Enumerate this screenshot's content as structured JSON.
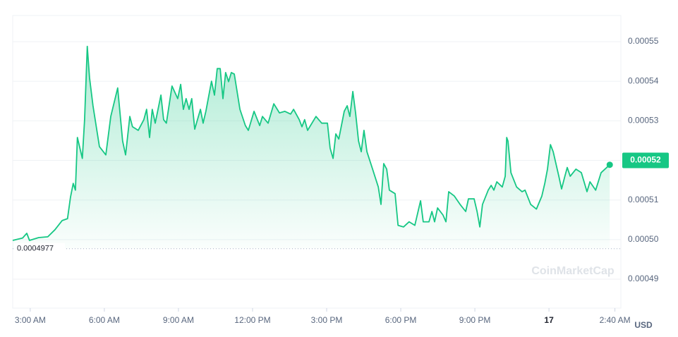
{
  "chart_data": {
    "type": "line",
    "x": [
      -0.71,
      -0.31,
      -0.14,
      -0.03,
      0.34,
      0.71,
      1.0,
      1.29,
      1.51,
      1.63,
      1.74,
      1.83,
      1.91,
      2.11,
      2.2,
      2.31,
      2.4,
      2.54,
      2.8,
      3.06,
      3.26,
      3.54,
      3.74,
      3.86,
      4.03,
      4.14,
      4.37,
      4.6,
      4.71,
      4.83,
      4.94,
      5.06,
      5.29,
      5.4,
      5.51,
      5.74,
      5.97,
      6.09,
      6.2,
      6.31,
      6.43,
      6.54,
      6.66,
      6.89,
      7.0,
      7.11,
      7.34,
      7.46,
      7.57,
      7.69,
      7.8,
      7.91,
      8.03,
      8.14,
      8.26,
      8.49,
      8.71,
      8.83,
      9.06,
      9.29,
      9.4,
      9.63,
      9.86,
      10.09,
      10.31,
      10.54,
      10.66,
      10.89,
      11.0,
      11.11,
      11.23,
      11.57,
      11.8,
      12.03,
      12.14,
      12.26,
      12.37,
      12.49,
      12.71,
      12.83,
      12.94,
      13.06,
      13.17,
      13.29,
      13.4,
      13.51,
      13.63,
      13.86,
      14.09,
      14.2,
      14.31,
      14.43,
      14.54,
      14.77,
      14.89,
      15.11,
      15.34,
      15.57,
      15.8,
      15.91,
      16.14,
      16.26,
      16.37,
      16.49,
      16.71,
      16.83,
      16.94,
      17.17,
      17.4,
      17.63,
      17.74,
      17.97,
      18.09,
      18.2,
      18.31,
      18.54,
      18.66,
      18.77,
      18.89,
      19.11,
      19.23,
      19.29,
      19.34,
      19.46,
      19.69,
      19.91,
      20.03,
      20.26,
      20.49,
      20.71,
      20.83,
      20.94,
      21.06,
      21.17,
      21.4,
      21.51,
      21.63,
      21.74,
      21.86,
      22.09,
      22.31,
      22.54,
      22.66,
      22.89,
      23.11,
      23.34,
      23.46
    ],
    "series": [
      {
        "color": "#16c784",
        "values": [
          0.0004998,
          0.0005004,
          0.0005016,
          0.0004998,
          0.0005005,
          0.0005007,
          0.0005025,
          0.0005048,
          0.0005053,
          0.0005107,
          0.0005142,
          0.0005125,
          0.0005258,
          0.0005205,
          0.0005303,
          0.0005488,
          0.0005409,
          0.0005338,
          0.0005235,
          0.0005214,
          0.0005311,
          0.0005383,
          0.0005249,
          0.0005214,
          0.0005311,
          0.0005285,
          0.0005276,
          0.0005303,
          0.0005329,
          0.0005258,
          0.0005329,
          0.0005294,
          0.0005365,
          0.0005303,
          0.0005294,
          0.0005388,
          0.0005356,
          0.0005392,
          0.0005329,
          0.0005356,
          0.0005329,
          0.0005356,
          0.0005279,
          0.0005329,
          0.0005294,
          0.0005324,
          0.00054,
          0.0005365,
          0.0005432,
          0.0005432,
          0.0005356,
          0.0005422,
          0.0005399,
          0.0005422,
          0.0005418,
          0.0005329,
          0.0005288,
          0.0005276,
          0.0005324,
          0.0005288,
          0.0005311,
          0.0005294,
          0.0005343,
          0.000532,
          0.0005324,
          0.0005317,
          0.0005329,
          0.0005303,
          0.0005285,
          0.0005303,
          0.0005276,
          0.0005311,
          0.0005294,
          0.0005294,
          0.0005231,
          0.0005205,
          0.0005267,
          0.0005254,
          0.0005324,
          0.0005338,
          0.0005311,
          0.0005374,
          0.000532,
          0.0005249,
          0.0005222,
          0.0005276,
          0.0005222,
          0.0005178,
          0.0005133,
          0.0005089,
          0.0005192,
          0.0005178,
          0.0005125,
          0.0005116,
          0.0005036,
          0.0005032,
          0.0005045,
          0.0005036,
          0.0005098,
          0.0005045,
          0.0005045,
          0.0005071,
          0.0005045,
          0.000508,
          0.0005062,
          0.0005045,
          0.0005121,
          0.000511,
          0.0005089,
          0.0005071,
          0.0005103,
          0.0005103,
          0.0005071,
          0.0005032,
          0.0005089,
          0.0005125,
          0.0005137,
          0.0005125,
          0.0005146,
          0.0005133,
          0.000516,
          0.0005258,
          0.0005249,
          0.0005169,
          0.0005133,
          0.0005121,
          0.0005125,
          0.0005089,
          0.0005077,
          0.000511,
          0.0005142,
          0.0005178,
          0.000524,
          0.0005222,
          0.000516,
          0.0005128,
          0.0005157,
          0.0005182,
          0.000516,
          0.0005178,
          0.0005169,
          0.0005121,
          0.0005146,
          0.0005125,
          0.0005169,
          0.0005182,
          0.0005189
        ]
      }
    ],
    "xlim": [
      -0.71,
      23.91
    ],
    "xticks": [
      {
        "value": 0,
        "label": "3:00 AM"
      },
      {
        "value": 3,
        "label": "6:00 AM"
      },
      {
        "value": 6,
        "label": "9:00 AM"
      },
      {
        "value": 9,
        "label": "12:00 PM"
      },
      {
        "value": 12,
        "label": "3:00 PM"
      },
      {
        "value": 15,
        "label": "6:00 PM"
      },
      {
        "value": 18,
        "label": "9:00 PM"
      },
      {
        "value": 21,
        "label": "17"
      },
      {
        "value": 23.67,
        "label": "2:40 AM"
      }
    ],
    "ylim": [
      0.0004827,
      0.0005566
    ],
    "yticks": [
      0.00049,
      {
        "value": 0.0005,
        "label": "0.00050"
      },
      0.00051,
      0.00052,
      0.00053,
      0.00054,
      0.00055
    ],
    "open_price": 0.0004977,
    "current_price": 0.00052,
    "y_axis_label": "USD",
    "watermark": "CoinMarketCap",
    "grid": true
  }
}
